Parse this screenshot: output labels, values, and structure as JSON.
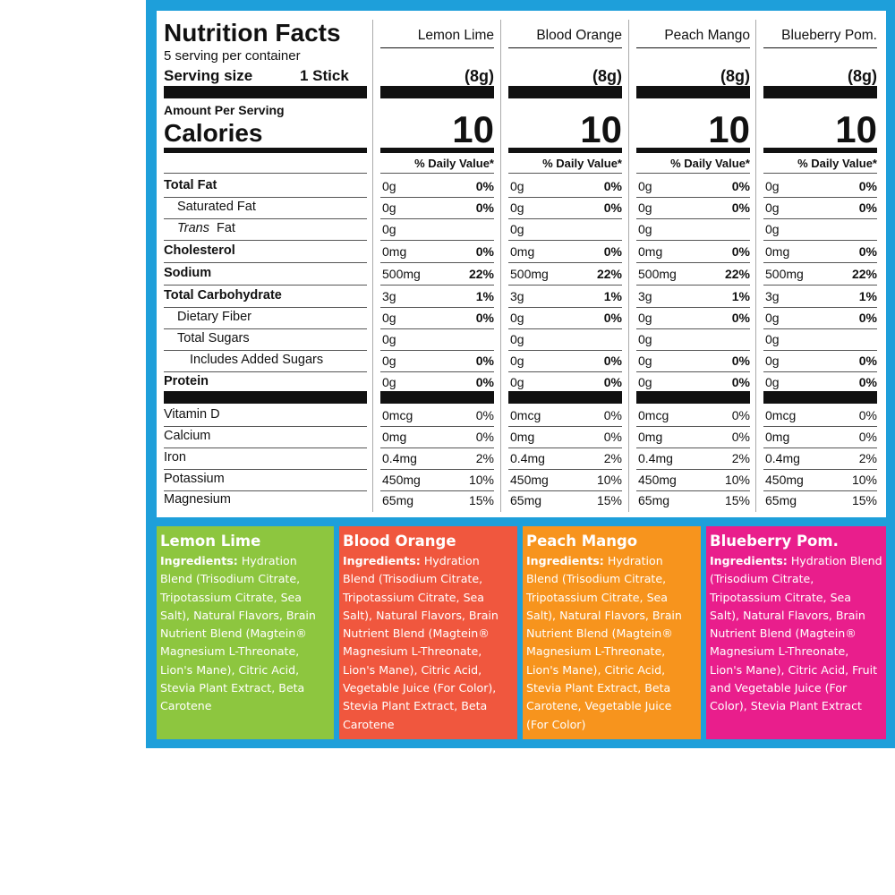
{
  "label": {
    "title": "Nutrition Facts",
    "servings": "5 serving per container",
    "serving_size_label": "Serving size",
    "serving_size": "1 Stick",
    "amount_per_serving": "Amount Per Serving",
    "calories_label": "Calories",
    "daily_value_header": "% Daily Value*"
  },
  "nutrients": [
    {
      "name": "Total Fat",
      "bold": true,
      "indent": 0
    },
    {
      "name": "Saturated Fat",
      "bold": false,
      "indent": 1
    },
    {
      "name_italic": "Trans",
      "name": "Fat",
      "bold": false,
      "indent": 1
    },
    {
      "name": "Cholesterol",
      "bold": true,
      "indent": 0
    },
    {
      "name": "Sodium",
      "bold": true,
      "indent": 0
    },
    {
      "name": "Total Carbohydrate",
      "bold": true,
      "indent": 0
    },
    {
      "name": "Dietary Fiber",
      "bold": false,
      "indent": 1
    },
    {
      "name": "Total Sugars",
      "bold": false,
      "indent": 1
    },
    {
      "name": "Includes Added Sugars",
      "bold": false,
      "indent": 2
    },
    {
      "name": "Protein",
      "bold": true,
      "indent": 0
    },
    {
      "name": "Vitamin D",
      "bold": false,
      "indent": 0,
      "section": "minerals"
    },
    {
      "name": "Calcium",
      "bold": false,
      "indent": 0,
      "section": "minerals"
    },
    {
      "name": "Iron",
      "bold": false,
      "indent": 0,
      "section": "minerals"
    },
    {
      "name": "Potassium",
      "bold": false,
      "indent": 0,
      "section": "minerals"
    },
    {
      "name": "Magnesium",
      "bold": false,
      "indent": 0,
      "section": "minerals"
    }
  ],
  "flavors": [
    {
      "name": "Lemon Lime",
      "serving_weight": "(8g)",
      "calories": 10,
      "values": [
        {
          "amount": "0g",
          "dv": "0%"
        },
        {
          "amount": "0g",
          "dv": "0%"
        },
        {
          "amount": "0g"
        },
        {
          "amount": "0mg",
          "dv": "0%"
        },
        {
          "amount": "500mg",
          "dv": "22%"
        },
        {
          "amount": "3g",
          "dv": "1%"
        },
        {
          "amount": "0g",
          "dv": "0%"
        },
        {
          "amount": "0g"
        },
        {
          "amount": "0g",
          "dv": "0%"
        },
        {
          "amount": "0g",
          "dv": "0%"
        },
        {
          "amount": "0mcg",
          "dv": "0%"
        },
        {
          "amount": "0mg",
          "dv": "0%"
        },
        {
          "amount": "0.4mg",
          "dv": "2%"
        },
        {
          "amount": "450mg",
          "dv": "10%"
        },
        {
          "amount": "65mg",
          "dv": "15%"
        }
      ]
    },
    {
      "name": "Blood Orange",
      "serving_weight": "(8g)",
      "calories": 10,
      "values": [
        {
          "amount": "0g",
          "dv": "0%"
        },
        {
          "amount": "0g",
          "dv": "0%"
        },
        {
          "amount": "0g"
        },
        {
          "amount": "0mg",
          "dv": "0%"
        },
        {
          "amount": "500mg",
          "dv": "22%"
        },
        {
          "amount": "3g",
          "dv": "1%"
        },
        {
          "amount": "0g",
          "dv": "0%"
        },
        {
          "amount": "0g"
        },
        {
          "amount": "0g",
          "dv": "0%"
        },
        {
          "amount": "0g",
          "dv": "0%"
        },
        {
          "amount": "0mcg",
          "dv": "0%"
        },
        {
          "amount": "0mg",
          "dv": "0%"
        },
        {
          "amount": "0.4mg",
          "dv": "2%"
        },
        {
          "amount": "450mg",
          "dv": "10%"
        },
        {
          "amount": "65mg",
          "dv": "15%"
        }
      ]
    },
    {
      "name": "Peach Mango",
      "serving_weight": "(8g)",
      "calories": 10,
      "values": [
        {
          "amount": "0g",
          "dv": "0%"
        },
        {
          "amount": "0g",
          "dv": "0%"
        },
        {
          "amount": "0g"
        },
        {
          "amount": "0mg",
          "dv": "0%"
        },
        {
          "amount": "500mg",
          "dv": "22%"
        },
        {
          "amount": "3g",
          "dv": "1%"
        },
        {
          "amount": "0g",
          "dv": "0%"
        },
        {
          "amount": "0g"
        },
        {
          "amount": "0g",
          "dv": "0%"
        },
        {
          "amount": "0g",
          "dv": "0%"
        },
        {
          "amount": "0mcg",
          "dv": "0%"
        },
        {
          "amount": "0mg",
          "dv": "0%"
        },
        {
          "amount": "0.4mg",
          "dv": "2%"
        },
        {
          "amount": "450mg",
          "dv": "10%"
        },
        {
          "amount": "65mg",
          "dv": "15%"
        }
      ]
    },
    {
      "name": "Blueberry Pom.",
      "serving_weight": "(8g)",
      "calories": 10,
      "values": [
        {
          "amount": "0g",
          "dv": "0%"
        },
        {
          "amount": "0g",
          "dv": "0%"
        },
        {
          "amount": "0g"
        },
        {
          "amount": "0mg",
          "dv": "0%"
        },
        {
          "amount": "500mg",
          "dv": "22%"
        },
        {
          "amount": "3g",
          "dv": "1%"
        },
        {
          "amount": "0g",
          "dv": "0%"
        },
        {
          "amount": "0g"
        },
        {
          "amount": "0g",
          "dv": "0%"
        },
        {
          "amount": "0g",
          "dv": "0%"
        },
        {
          "amount": "0mcg",
          "dv": "0%"
        },
        {
          "amount": "0mg",
          "dv": "0%"
        },
        {
          "amount": "0.4mg",
          "dv": "2%"
        },
        {
          "amount": "450mg",
          "dv": "10%"
        },
        {
          "amount": "65mg",
          "dv": "15%"
        }
      ]
    }
  ],
  "ingredients": [
    {
      "name": "Lemon Lime",
      "color": "#8dc63f",
      "label": "Ingredients:",
      "text": "Hydration Blend (Trisodium Citrate, Tripotassium Citrate, Sea Salt), Natural Flavors, Brain Nutrient Blend (Magtein® Magnesium L-Threonate, Lion's Mane), Citric Acid, Stevia Plant Extract, Beta Carotene"
    },
    {
      "name": "Blood Orange",
      "color": "#f0573e",
      "label": "Ingredients:",
      "text": "Hydration Blend (Trisodium Citrate, Tripotassium Citrate, Sea Salt), Natural Flavors, Brain Nutrient Blend (Magtein® Magnesium L-Threonate, Lion's Mane), Citric Acid, Vegetable Juice (For Color), Stevia Plant Extract, Beta Carotene"
    },
    {
      "name": "Peach Mango",
      "color": "#f7941d",
      "label": "Ingredients:",
      "text": "Hydration Blend (Trisodium Citrate, Tripotassium Citrate, Sea Salt), Natural Flavors, Brain Nutrient Blend (Magtein® Magnesium L-Threonate, Lion's Mane), Citric Acid, Stevia Plant Extract, Beta Carotene, Vegetable Juice (For Color)"
    },
    {
      "name": "Blueberry Pom.",
      "color": "#e91e8c",
      "label": "Ingredients:",
      "text": "Hydration Blend (Trisodium Citrate, Tripotassium Citrate, Sea Salt), Natural Flavors, Brain Nutrient Blend (Magtein® Magnesium L-Threonate, Lion's Mane), Citric Acid, Fruit and Vegetable Juice (For Color), Stevia Plant Extract"
    }
  ]
}
